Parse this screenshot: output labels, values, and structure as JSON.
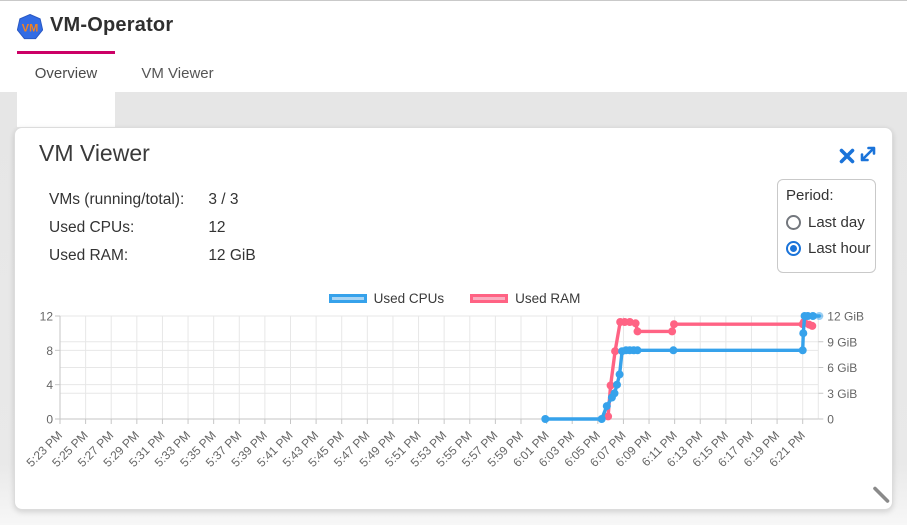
{
  "header": {
    "title": "VM-Operator",
    "logo_text": "VM"
  },
  "tabs": [
    {
      "label": "Overview",
      "active": true
    },
    {
      "label": "VM Viewer",
      "active": false
    }
  ],
  "card": {
    "title": "VM Viewer",
    "stats": [
      {
        "label": "VMs (running/total):",
        "value": "3 / 3"
      },
      {
        "label": "Used CPUs:",
        "value": "12"
      },
      {
        "label": "Used RAM:",
        "value": "12 GiB"
      }
    ],
    "period": {
      "label": "Period:",
      "options": [
        {
          "label": "Last day",
          "selected": false
        },
        {
          "label": "Last hour",
          "selected": true
        }
      ]
    }
  },
  "icons": {
    "close": "✕",
    "expand": "⤢",
    "resize_handle": "╲"
  },
  "colors": {
    "tab_accent": "#cc0066",
    "icon_blue": "#1a73d9",
    "cpu_line": "#36A2EB",
    "ram_line": "#FF6384",
    "grid": "#e7e7e7",
    "axis_line": "#c6c6c6",
    "axis_text": "#666666"
  },
  "chart_data": {
    "type": "line",
    "title": "",
    "grid": true,
    "legend_position": "top",
    "legend": [
      "Used CPUs",
      "Used RAM"
    ],
    "x_axis": {
      "start_label": "5:23 PM",
      "minutes_per_tick": 2,
      "tick_labels": [
        "5:23 PM",
        "5:25 PM",
        "5:27 PM",
        "5:29 PM",
        "5:31 PM",
        "5:33 PM",
        "5:35 PM",
        "5:37 PM",
        "5:39 PM",
        "5:41 PM",
        "5:43 PM",
        "5:45 PM",
        "5:47 PM",
        "5:49 PM",
        "5:51 PM",
        "5:53 PM",
        "5:55 PM",
        "5:57 PM",
        "5:59 PM",
        "6:01 PM",
        "6:03 PM",
        "6:05 PM",
        "6:07 PM",
        "6:09 PM",
        "6:11 PM",
        "6:13 PM",
        "6:15 PM",
        "6:17 PM",
        "6:19 PM",
        "6:21 PM"
      ]
    },
    "left_axis": {
      "ticks": [
        0,
        4,
        8,
        12
      ],
      "range": [
        0,
        12
      ]
    },
    "right_axis": {
      "ticks": [
        {
          "value": 0,
          "label": "0"
        },
        {
          "value": 3,
          "label": "3 GiB"
        },
        {
          "value": 6,
          "label": "6 GiB"
        },
        {
          "value": 9,
          "label": "9 GiB"
        },
        {
          "value": 12,
          "label": "12 GiB"
        }
      ],
      "range": [
        0,
        12
      ]
    },
    "series": [
      {
        "name": "Used CPUs",
        "axis": "left",
        "color": "#36A2EB",
        "faded_last_point": true,
        "points_minutes_value": [
          [
            37.9,
            0
          ],
          [
            42.3,
            0
          ],
          [
            42.7,
            1.5
          ],
          [
            43.1,
            2.5
          ],
          [
            43.3,
            3
          ],
          [
            43.5,
            4
          ],
          [
            43.7,
            5.2
          ],
          [
            43.9,
            7.9
          ],
          [
            44.2,
            8
          ],
          [
            44.5,
            8
          ],
          [
            44.8,
            8
          ],
          [
            45.1,
            8
          ],
          [
            47.9,
            8
          ],
          [
            58.0,
            8
          ],
          [
            58.05,
            10
          ],
          [
            58.15,
            12
          ],
          [
            58.4,
            12
          ],
          [
            58.8,
            12
          ],
          [
            59.3,
            12
          ]
        ]
      },
      {
        "name": "Used RAM",
        "axis": "right",
        "color": "#FF6384",
        "faded_last_point": false,
        "points_minutes_value": [
          [
            42.8,
            0.3
          ],
          [
            43.0,
            3.9
          ],
          [
            43.35,
            7.9
          ],
          [
            43.75,
            11.3
          ],
          [
            44.1,
            11.3
          ],
          [
            44.5,
            11.3
          ],
          [
            44.95,
            11.15
          ],
          [
            45.1,
            10.2
          ],
          [
            47.8,
            10.2
          ],
          [
            47.95,
            11.05
          ],
          [
            58.0,
            11.05
          ],
          [
            58.1,
            11.3
          ],
          [
            58.5,
            11.0
          ],
          [
            58.75,
            10.85
          ]
        ]
      }
    ]
  }
}
